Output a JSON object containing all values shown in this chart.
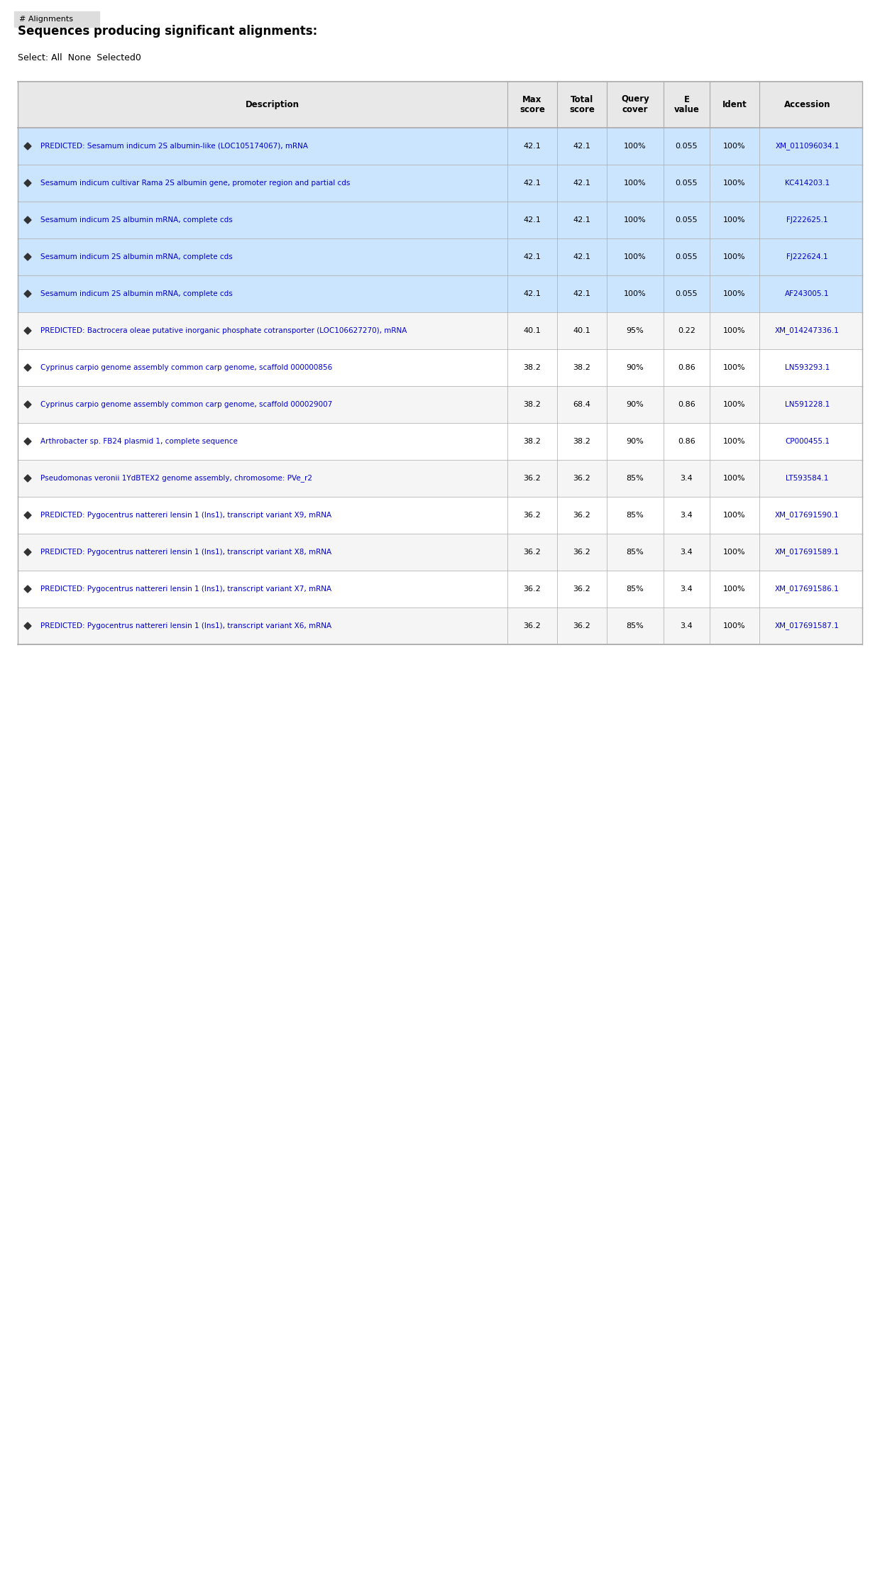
{
  "title": "Sequences producing significant alignments:",
  "header_note": "Select: All  None  Selected0",
  "columns": [
    "",
    "Description",
    "Max\nscore",
    "Total\nscore",
    "Query\ncover",
    "E\nvalue",
    "Ident",
    "Accession"
  ],
  "rows": [
    {
      "checkbox": true,
      "description": "PREDICTED: Sesamum indicum 2S albumin-like (LOC105174067), mRNA",
      "max_score": "42.1",
      "total_score": "42.1",
      "query_cover": "100%",
      "e_value": "0.055",
      "ident": "100%",
      "accession": "XM_011096034.1",
      "highlight": true
    },
    {
      "checkbox": true,
      "description": "Sesamum indicum cultivar Rama 2S albumin gene, promoter region and partial cds",
      "max_score": "42.1",
      "total_score": "42.1",
      "query_cover": "100%",
      "e_value": "0.055",
      "ident": "100%",
      "accession": "KC414203.1",
      "highlight": true
    },
    {
      "checkbox": true,
      "description": "Sesamum indicum 2S albumin mRNA, complete cds",
      "max_score": "42.1",
      "total_score": "42.1",
      "query_cover": "100%",
      "e_value": "0.055",
      "ident": "100%",
      "accession": "FJ222625.1",
      "highlight": true
    },
    {
      "checkbox": true,
      "description": "Sesamum indicum 2S albumin mRNA, complete cds",
      "max_score": "42.1",
      "total_score": "42.1",
      "query_cover": "100%",
      "e_value": "0.055",
      "ident": "100%",
      "accession": "FJ222624.1",
      "highlight": true
    },
    {
      "checkbox": true,
      "description": "Sesamum indicum 2S albumin mRNA, complete cds",
      "max_score": "42.1",
      "total_score": "42.1",
      "query_cover": "100%",
      "e_value": "0.055",
      "ident": "100%",
      "accession": "AF243005.1",
      "highlight": true
    },
    {
      "checkbox": true,
      "description": "PREDICTED: Bactrocera oleae putative inorganic phosphate cotransporter (LOC106627270), mRNA",
      "max_score": "40.1",
      "total_score": "40.1",
      "query_cover": "95%",
      "e_value": "0.22",
      "ident": "100%",
      "accession": "XM_014247336.1",
      "highlight": false
    },
    {
      "checkbox": true,
      "description": "Cyprinus carpio genome assembly common carp genome, scaffold 000000856",
      "max_score": "38.2",
      "total_score": "38.2",
      "query_cover": "90%",
      "e_value": "0.86",
      "ident": "100%",
      "accession": "LN593293.1",
      "highlight": false
    },
    {
      "checkbox": true,
      "description": "Cyprinus carpio genome assembly common carp genome, scaffold 000029007",
      "max_score": "38.2",
      "total_score": "68.4",
      "query_cover": "90%",
      "e_value": "0.86",
      "ident": "100%",
      "accession": "LN591228.1",
      "highlight": false
    },
    {
      "checkbox": true,
      "description": "Arthrobacter sp. FB24 plasmid 1, complete sequence",
      "max_score": "38.2",
      "total_score": "38.2",
      "query_cover": "90%",
      "e_value": "0.86",
      "ident": "100%",
      "accession": "CP000455.1",
      "highlight": false
    },
    {
      "checkbox": true,
      "description": "Pseudomonas veronii 1YdBTEX2 genome assembly, chromosome: PVe_r2",
      "max_score": "36.2",
      "total_score": "36.2",
      "query_cover": "85%",
      "e_value": "3.4",
      "ident": "100%",
      "accession": "LT593584.1",
      "highlight": false
    },
    {
      "checkbox": true,
      "description": "PREDICTED: Pygocentrus nattereri lensin 1 (lns1), transcript variant X9, mRNA",
      "max_score": "36.2",
      "total_score": "36.2",
      "query_cover": "85%",
      "e_value": "3.4",
      "ident": "100%",
      "accession": "XM_017691590.1",
      "highlight": false
    },
    {
      "checkbox": true,
      "description": "PREDICTED: Pygocentrus nattereri lensin 1 (lns1), transcript variant X8, mRNA",
      "max_score": "36.2",
      "total_score": "36.2",
      "query_cover": "85%",
      "e_value": "3.4",
      "ident": "100%",
      "accession": "XM_017691589.1",
      "highlight": false
    },
    {
      "checkbox": true,
      "description": "PREDICTED: Pygocentrus nattereri lensin 1 (lns1), transcript variant X7, mRNA",
      "max_score": "36.2",
      "total_score": "36.2",
      "query_cover": "85%",
      "e_value": "3.4",
      "ident": "100%",
      "accession": "XM_017691586.1",
      "highlight": false
    },
    {
      "checkbox": true,
      "description": "PREDICTED: Pygocentrus nattereri lensin 1 (lns1), transcript variant X6, mRNA",
      "max_score": "36.2",
      "total_score": "36.2",
      "query_cover": "85%",
      "e_value": "3.4",
      "ident": "100%",
      "accession": "XM_017691587.1",
      "highlight": false
    }
  ],
  "bg_color": "#ffffff",
  "highlight_color": "#cce5ff",
  "border_color": "#aaaaaa",
  "text_color": "#000000",
  "link_color": "#0000cc",
  "header_color": "#000000",
  "header_bg": "#e8e8e8",
  "figsize": [
    12.4,
    22.39
  ],
  "dpi": 100
}
